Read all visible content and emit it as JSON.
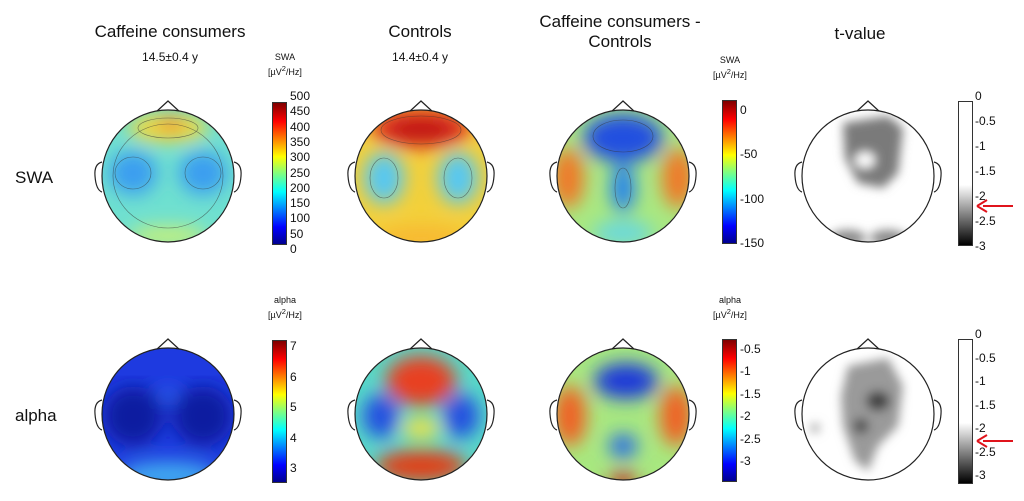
{
  "columns": [
    {
      "title": "Caffeine consumers",
      "subtitle": "14.5±0.4 y"
    },
    {
      "title": "Controls",
      "subtitle": "14.4±0.4 y"
    },
    {
      "title_line1": "Caffeine consumers -",
      "title_line2": "Controls"
    },
    {
      "title": "t-value"
    }
  ],
  "rows": [
    {
      "label": "SWA"
    },
    {
      "label": "alpha"
    }
  ],
  "colorbars": {
    "swa_abs": {
      "title_line1": "SWA",
      "unit_pre": "[µV",
      "unit_sup": "2",
      "unit_post": "/Hz]",
      "ticks": [
        "500",
        "450",
        "400",
        "350",
        "300",
        "250",
        "200",
        "150",
        "100",
        "50",
        "0"
      ]
    },
    "swa_diff": {
      "title_line1": "SWA",
      "unit_pre": "[µV",
      "unit_sup": "2",
      "unit_post": "/Hz]",
      "ticks": [
        "0",
        "-50",
        "-100",
        "-150"
      ]
    },
    "swa_t": {
      "ticks": [
        "0",
        "-0.5",
        "-1",
        "-1.5",
        "-2",
        "-2.5",
        "-3"
      ]
    },
    "alpha_abs": {
      "title_line1": "alpha",
      "unit_pre": "[µV",
      "unit_sup": "2",
      "unit_post": "/Hz]",
      "ticks": [
        "7",
        "6",
        "5",
        "4",
        "3"
      ]
    },
    "alpha_diff": {
      "title_line1": "alpha",
      "unit_pre": "[µV",
      "unit_sup": "2",
      "unit_post": "/Hz]",
      "ticks": [
        "-0.5",
        "-1",
        "-1.5",
        "-2",
        "-2.5",
        "-3"
      ]
    },
    "alpha_t": {
      "ticks": [
        "0",
        "-0.5",
        "-1",
        "-1.5",
        "-2",
        "-2.5",
        "-3"
      ]
    }
  },
  "threshold_marker": {
    "color": "#e0141c",
    "value": "-2.2"
  },
  "colors": {
    "jet_low": "#00008f",
    "jet_high": "#7f0000",
    "gray_low": "#000000",
    "gray_high": "#ffffff"
  }
}
